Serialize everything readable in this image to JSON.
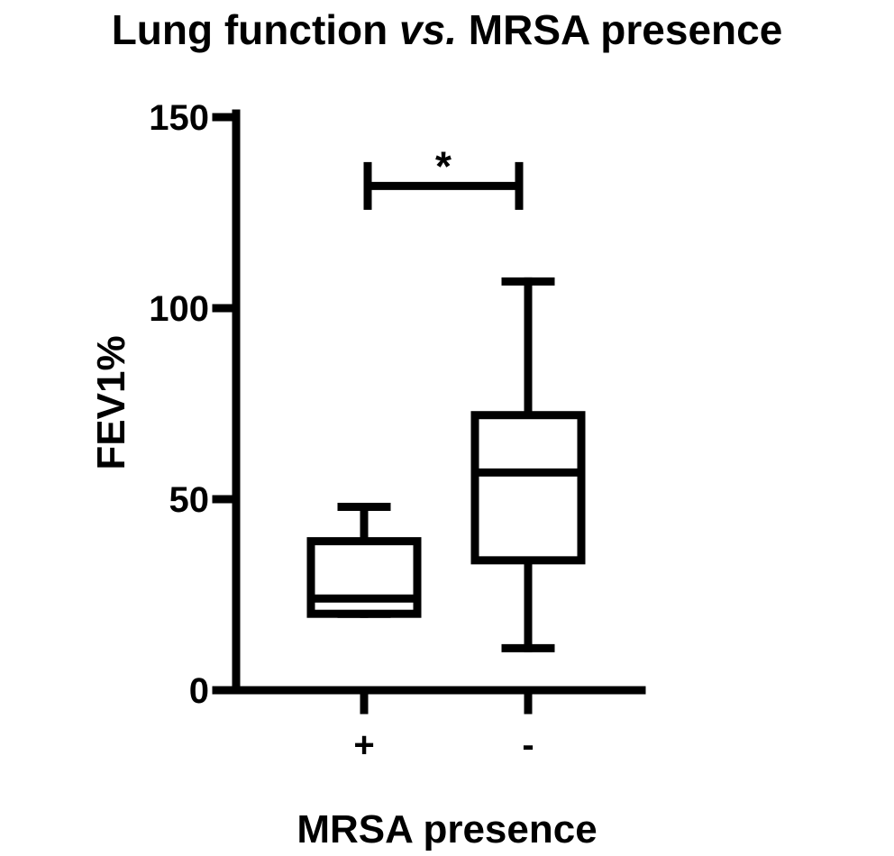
{
  "chart_data": {
    "type": "box",
    "title": {
      "part1": "Lung function ",
      "part2": "vs.",
      "part3": " MRSA presence"
    },
    "xlabel": "MRSA presence",
    "ylabel": "FEV1%",
    "ylim": [
      0,
      150
    ],
    "yticks": [
      0,
      50,
      100,
      150
    ],
    "categories": [
      "+",
      "-"
    ],
    "boxes": [
      {
        "category": "+",
        "min": 20,
        "q1": 20,
        "median": 24,
        "q3": 39,
        "max": 48
      },
      {
        "category": "-",
        "min": 11,
        "q1": 34,
        "median": 57,
        "q3": 72,
        "max": 107
      }
    ],
    "significance": {
      "from": "+",
      "to": "-",
      "label": "*",
      "y": 132
    },
    "colors": {
      "stroke": "#000000",
      "background": "#ffffff"
    }
  }
}
